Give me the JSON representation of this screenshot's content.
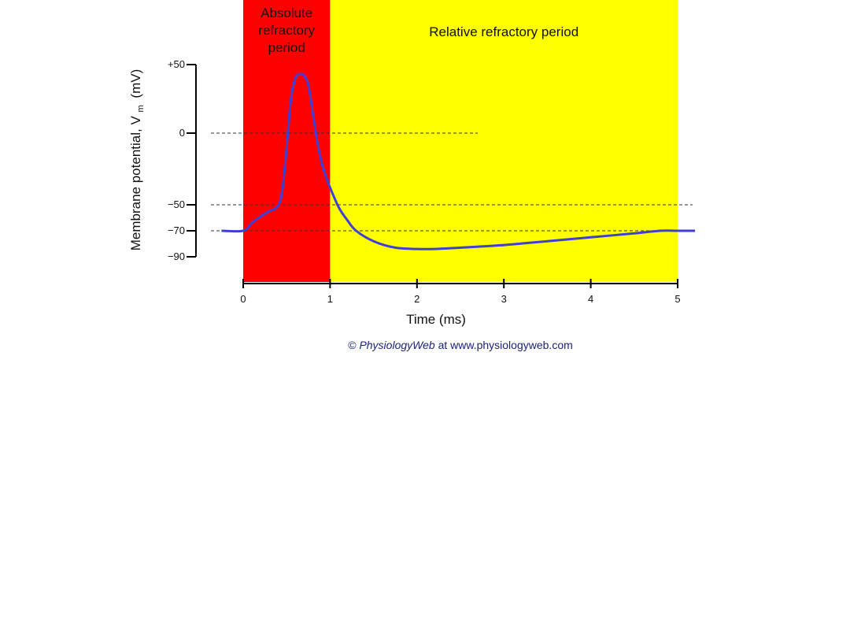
{
  "chart_data": {
    "type": "line",
    "title": "",
    "xlabel": "Time (ms)",
    "ylabel_main": "Membrane potential, V",
    "ylabel_subscript": "m",
    "ylabel_unit": "(mV)",
    "xlim": [
      0,
      5
    ],
    "ylim": [
      -110,
      50
    ],
    "x_ticks": [
      0,
      1,
      2,
      3,
      4,
      5
    ],
    "x_tick_labels": [
      "0",
      "1",
      "2",
      "3",
      "4",
      "5"
    ],
    "y_ticks": [
      50,
      0,
      -50,
      -70,
      -90
    ],
    "y_tick_labels": [
      "+50",
      "0",
      "−50",
      "−70",
      "−90"
    ],
    "reference_lines": [
      {
        "value": 0,
        "x_end": 2.7,
        "style": "dashed"
      },
      {
        "value": -50,
        "x_end": 5.2,
        "style": "dashed"
      },
      {
        "value": -70,
        "x_end": 5.2,
        "style": "dashed"
      }
    ],
    "regions": [
      {
        "label_lines": [
          "Absolute",
          "refractory",
          "period"
        ],
        "x_start": 0,
        "x_end": 1,
        "color": "#ff0000"
      },
      {
        "label_lines": [
          "Relative refractory period"
        ],
        "x_start": 1,
        "x_end": 5,
        "color": "#ffff00"
      }
    ],
    "series": [
      {
        "color": "#3f3fd6",
        "x": [
          -0.25,
          0,
          0.1,
          0.2,
          0.3,
          0.4,
          0.45,
          0.5,
          0.55,
          0.6,
          0.65,
          0.7,
          0.75,
          0.8,
          0.85,
          0.9,
          0.95,
          1.0,
          1.1,
          1.2,
          1.3,
          1.5,
          1.75,
          2.0,
          2.2,
          2.5,
          3.0,
          3.5,
          4.0,
          4.5,
          4.8,
          5.0,
          5.2
        ],
        "y": [
          -70,
          -70,
          -64,
          -59,
          -55,
          -51,
          -40,
          -10,
          25,
          40,
          43,
          42,
          35,
          15,
          -5,
          -20,
          -30,
          -38,
          -52,
          -62,
          -70,
          -78,
          -83,
          -84,
          -84,
          -83,
          -81,
          -78,
          -75,
          -72,
          -70,
          -70,
          -70
        ]
      }
    ]
  },
  "credit": {
    "prefix": "© ",
    "brand": "PhysiologyWeb",
    "suffix": " at www.physiologyweb.com"
  }
}
